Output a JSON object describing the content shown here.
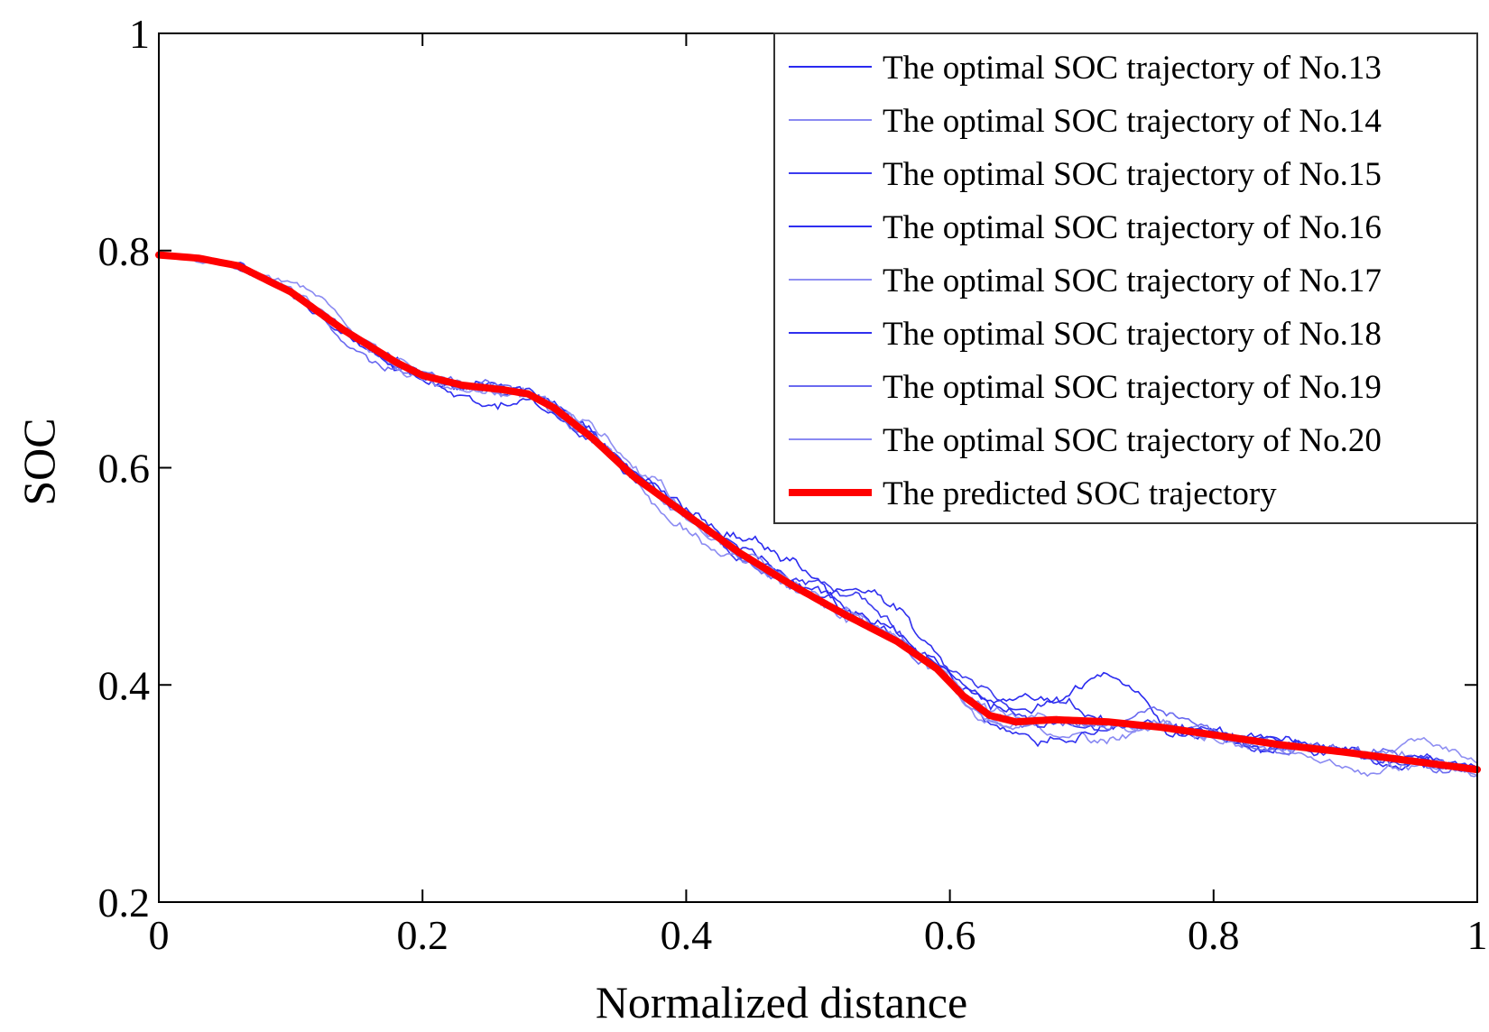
{
  "chart_data": {
    "type": "line",
    "xlabel": "Normalized distance",
    "ylabel": "SOC",
    "xlim": [
      0,
      1
    ],
    "ylim": [
      0.2,
      1
    ],
    "xticks": [
      0,
      0.2,
      0.4,
      0.6,
      0.8,
      1
    ],
    "xtick_labels": [
      "0",
      "0.2",
      "0.4",
      "0.6",
      "0.8",
      "1"
    ],
    "yticks": [
      0.2,
      0.4,
      0.6,
      0.8,
      1
    ],
    "ytick_labels": [
      "0.2",
      "0.4",
      "0.6",
      "0.8",
      "1"
    ],
    "grid": false,
    "legend_position": "top-right",
    "predicted": {
      "name": "The predicted SOC trajectory",
      "color": "#ff0000",
      "x": [
        0,
        0.03,
        0.06,
        0.1,
        0.14,
        0.18,
        0.2,
        0.23,
        0.26,
        0.28,
        0.3,
        0.33,
        0.36,
        0.4,
        0.44,
        0.48,
        0.52,
        0.56,
        0.59,
        0.61,
        0.63,
        0.65,
        0.68,
        0.72,
        0.76,
        0.8,
        0.85,
        0.9,
        0.95,
        1.0
      ],
      "y": [
        0.796,
        0.793,
        0.786,
        0.762,
        0.727,
        0.697,
        0.685,
        0.676,
        0.672,
        0.668,
        0.655,
        0.626,
        0.592,
        0.557,
        0.522,
        0.492,
        0.465,
        0.44,
        0.415,
        0.39,
        0.372,
        0.366,
        0.368,
        0.366,
        0.361,
        0.354,
        0.345,
        0.338,
        0.33,
        0.322
      ]
    },
    "series": [
      {
        "name": "The optimal SOC trajectory of No.13",
        "color": "#2a2af0",
        "seed": 13,
        "bumps": [
          [
            0.42,
            0.52,
            0.025
          ],
          [
            0.6,
            0.7,
            0.02
          ],
          [
            0.68,
            0.76,
            0.04
          ]
        ]
      },
      {
        "name": "The optimal SOC trajectory of No.14",
        "color": "#8a8af2",
        "seed": 14,
        "bumps": [
          [
            0.08,
            0.16,
            0.012
          ],
          [
            0.66,
            0.76,
            -0.018
          ]
        ]
      },
      {
        "name": "The optimal SOC trajectory of No.15",
        "color": "#3b3bef",
        "seed": 15,
        "bumps": [
          [
            0.48,
            0.58,
            0.022
          ],
          [
            0.57,
            0.67,
            0.018
          ]
        ]
      },
      {
        "name": "The optimal SOC trajectory of No.16",
        "color": "#2f2ff0",
        "seed": 16,
        "bumps": [
          [
            0.2,
            0.3,
            -0.015
          ],
          [
            0.62,
            0.72,
            -0.02
          ]
        ]
      },
      {
        "name": "The optimal SOC trajectory of No.17",
        "color": "#8f8ff2",
        "seed": 17,
        "bumps": [
          [
            0.3,
            0.4,
            0.015
          ],
          [
            0.92,
            1.0,
            0.012
          ]
        ]
      },
      {
        "name": "The optimal SOC trajectory of No.18",
        "color": "#3030ee",
        "seed": 18,
        "bumps": [
          [
            0.5,
            0.6,
            0.03
          ],
          [
            0.63,
            0.73,
            0.015
          ]
        ]
      },
      {
        "name": "The optimal SOC trajectory of No.19",
        "color": "#6a6af0",
        "seed": 19,
        "bumps": [
          [
            0.12,
            0.2,
            -0.012
          ],
          [
            0.72,
            0.82,
            0.015
          ]
        ]
      },
      {
        "name": "The optimal SOC trajectory of No.20",
        "color": "#8a8af2",
        "seed": 20,
        "bumps": [
          [
            0.35,
            0.45,
            -0.015
          ],
          [
            0.85,
            0.95,
            -0.015
          ]
        ]
      }
    ]
  }
}
